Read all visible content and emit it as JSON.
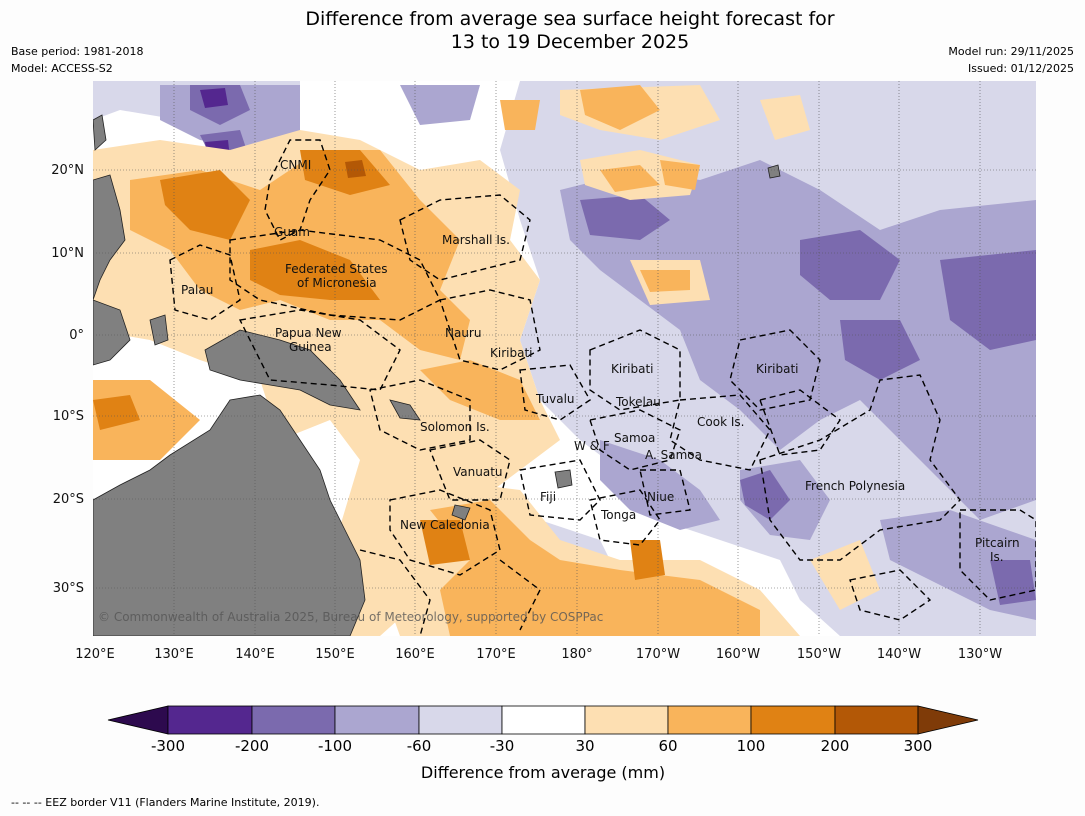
{
  "title_line1": "Difference from average sea surface height forecast for",
  "title_line2": "13 to 19 December 2025",
  "base_period": "Base period: 1981-2018",
  "model": "Model: ACCESS-S2",
  "model_run": "Model run: 29/11/2025",
  "issued": "Issued: 01/12/2025",
  "copyright": "© Commonwealth of Australia 2025, Bureau of Meteorology, supported by COSPPac",
  "footer": "-- -- -- EEZ border V11 (Flanders Marine Institute, 2019).",
  "lat_labels": [
    "20°N",
    "10°N",
    "0°",
    "10°S",
    "20°S",
    "30°S"
  ],
  "lon_labels": [
    "120°E",
    "130°E",
    "140°E",
    "150°E",
    "160°E",
    "170°E",
    "180°",
    "170°W",
    "160°W",
    "150°W",
    "140°W",
    "130°W"
  ],
  "places": {
    "cnmi": "CNMI",
    "guam": "Guam",
    "marshall": "Marshall Is.",
    "palau": "Palau",
    "fsm1": "Federated States",
    "fsm2": "of Micronesia",
    "png1": "Papua New",
    "png2": "Guinea",
    "nauru": "Nauru",
    "kiribati1": "Kiribati",
    "kiribati2": "Kiribati",
    "kiribati3": "Kiribati",
    "tuvalu": "Tuvalu",
    "tokelau": "Tokelau",
    "solomon": "Solomon Is.",
    "cook": "Cook Is.",
    "wf": "W & F",
    "samoa": "Samoa",
    "asamoa": "A. Samoa",
    "vanuatu": "Vanuatu",
    "fiji": "Fiji",
    "niue": "Niue",
    "tonga": "Tonga",
    "french_polynesia": "French Polynesia",
    "newcal": "New Caledonia",
    "pitcairn1": "Pitcairn",
    "pitcairn2": "Is."
  },
  "colorbar": {
    "title": "Difference from average (mm)",
    "ticks": [
      "-300",
      "-200",
      "-100",
      "-60",
      "-30",
      "30",
      "60",
      "100",
      "200",
      "300"
    ],
    "colors": {
      "min_arrow": "#2d0a4e",
      "c1": "#54278f",
      "c2": "#7b6aae",
      "c3": "#aba6d0",
      "c4": "#d8d8ea",
      "c5": "#ffffff",
      "c6": "#fddfb2",
      "c7": "#f9b45b",
      "c8": "#e08214",
      "c9": "#b35806",
      "max_arrow": "#7f3b08"
    }
  },
  "colors": {
    "land": "#808080",
    "background": "#fdfdfd"
  }
}
